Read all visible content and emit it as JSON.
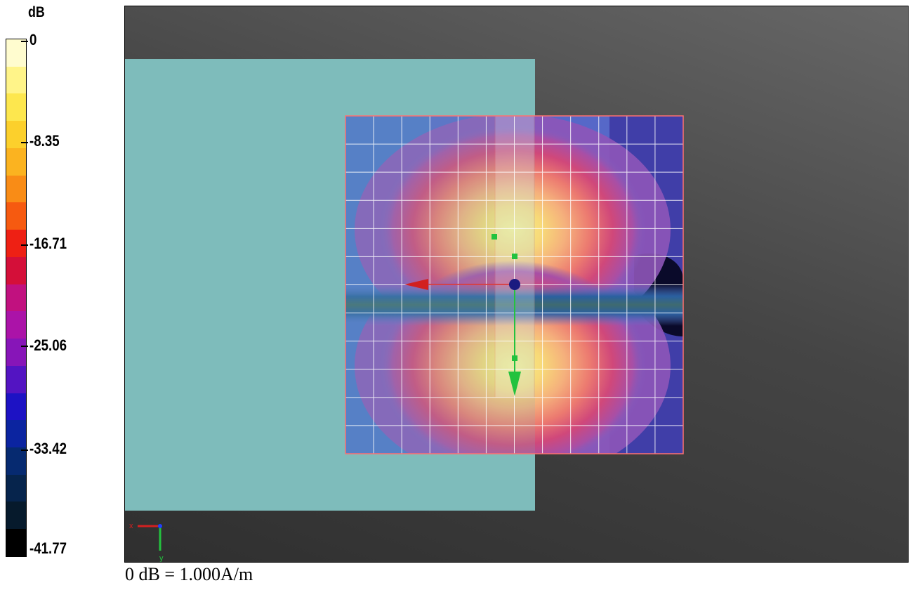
{
  "legend": {
    "unit": "dB",
    "labels": [
      "0",
      "-8.35",
      "-16.71",
      "-25.06",
      "-33.42",
      "-41.77"
    ],
    "colors": [
      "#fffccf",
      "#fff489",
      "#fde74e",
      "#fcd02c",
      "#fbb320",
      "#f98c16",
      "#f65a10",
      "#ee2014",
      "#d40f39",
      "#c1117f",
      "#ab13a8",
      "#8715b8",
      "#5314c2",
      "#1d12c4",
      "#0b24a0",
      "#062a70",
      "#06244c",
      "#061a2c",
      "#000000"
    ]
  },
  "viewport": {
    "phantom_color": "#7ebcbb",
    "scan_frame_color": "#ff7070",
    "grid_color": "#ffffff",
    "axis_colors": {
      "x": "#d22020",
      "y": "#23c23e",
      "z": "#2040ff"
    },
    "triad_labels": {
      "x": "x",
      "y": "y"
    }
  },
  "footer": {
    "note": "0 dB = 1.000A/m"
  }
}
